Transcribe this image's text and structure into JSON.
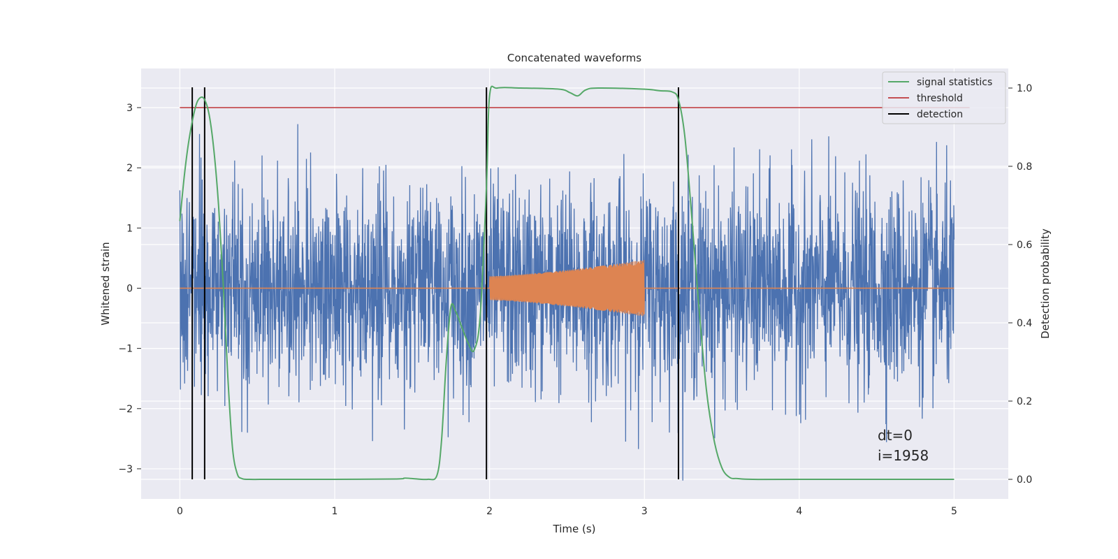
{
  "chart_data": {
    "type": "line",
    "title": "Concatenated waveforms",
    "xlabel": "Time (s)",
    "ylabel": "Whitened strain",
    "y2label": "Detection probability",
    "xlim": [
      -0.25,
      5.35
    ],
    "ylim": [
      -3.5,
      3.65
    ],
    "y2lim": [
      -0.05,
      1.05
    ],
    "xticks": [
      0,
      1,
      2,
      3,
      4,
      5
    ],
    "yticks": [
      -3,
      -2,
      -1,
      0,
      1,
      2,
      3
    ],
    "y2ticks": [
      0.0,
      0.2,
      0.4,
      0.6,
      0.8,
      1.0
    ],
    "xtick_labels": [
      "0",
      "1",
      "2",
      "3",
      "4",
      "5"
    ],
    "ytick_labels": [
      "−3",
      "−2",
      "−1",
      "0",
      "1",
      "2",
      "3"
    ],
    "y2tick_labels": [
      "0.0",
      "0.2",
      "0.4",
      "0.6",
      "0.8",
      "1.0"
    ],
    "grid": true,
    "legend_position": "top-right",
    "legend": [
      "signal statistics",
      "threshold",
      "detection"
    ],
    "colors": {
      "background": "#eaeaf2",
      "strain": "#4c72b0",
      "injection": "#dd8452",
      "signal_statistics": "#55a868",
      "threshold": "#c44e52",
      "detection": "#000000"
    },
    "series": [
      {
        "name": "signal statistics",
        "axis": "right",
        "x": [
          0,
          0.03,
          0.06,
          0.1,
          0.13,
          0.16,
          0.19,
          0.22,
          0.25,
          0.28,
          0.31,
          0.34,
          0.37,
          0.4,
          0.45,
          0.6,
          1.0,
          1.4,
          1.45,
          1.5,
          1.6,
          1.66,
          1.69,
          1.72,
          1.75,
          1.78,
          1.82,
          1.86,
          1.9,
          1.94,
          1.98,
          2.0,
          2.05,
          2.2,
          2.45,
          2.52,
          2.57,
          2.62,
          2.7,
          3.0,
          3.1,
          3.18,
          3.22,
          3.26,
          3.3,
          3.35,
          3.4,
          3.45,
          3.5,
          3.55,
          3.6,
          3.7,
          4.0,
          5.0
        ],
        "values": [
          0.66,
          0.78,
          0.87,
          0.95,
          0.975,
          0.97,
          0.93,
          0.84,
          0.7,
          0.5,
          0.26,
          0.08,
          0.015,
          0.002,
          0.0,
          0.0,
          0.0,
          0.001,
          0.003,
          0.002,
          0.0,
          0.01,
          0.1,
          0.3,
          0.44,
          0.43,
          0.39,
          0.35,
          0.33,
          0.42,
          0.75,
          0.98,
          1.0,
          1.0,
          0.997,
          0.988,
          0.98,
          0.995,
          1.0,
          0.997,
          0.993,
          0.99,
          0.97,
          0.88,
          0.7,
          0.45,
          0.23,
          0.1,
          0.03,
          0.005,
          0.002,
          0.0,
          0.0,
          0.0
        ]
      },
      {
        "name": "threshold",
        "axis": "right",
        "x": [
          0,
          5.1
        ],
        "values": [
          0.95,
          0.95
        ]
      }
    ],
    "detections_x": [
      0.08,
      0.16,
      1.98,
      3.22
    ],
    "noise": {
      "x_range": [
        0,
        5
      ],
      "amplitude_std": 0.85,
      "peak_min": -3.2,
      "peak_max": 3.3
    },
    "injection": {
      "x_range": [
        2,
        3
      ],
      "amplitude_start": 0.2,
      "amplitude_end": 0.47,
      "cycles": 140
    },
    "annotation": [
      "dt=0",
      "i=1958"
    ]
  }
}
